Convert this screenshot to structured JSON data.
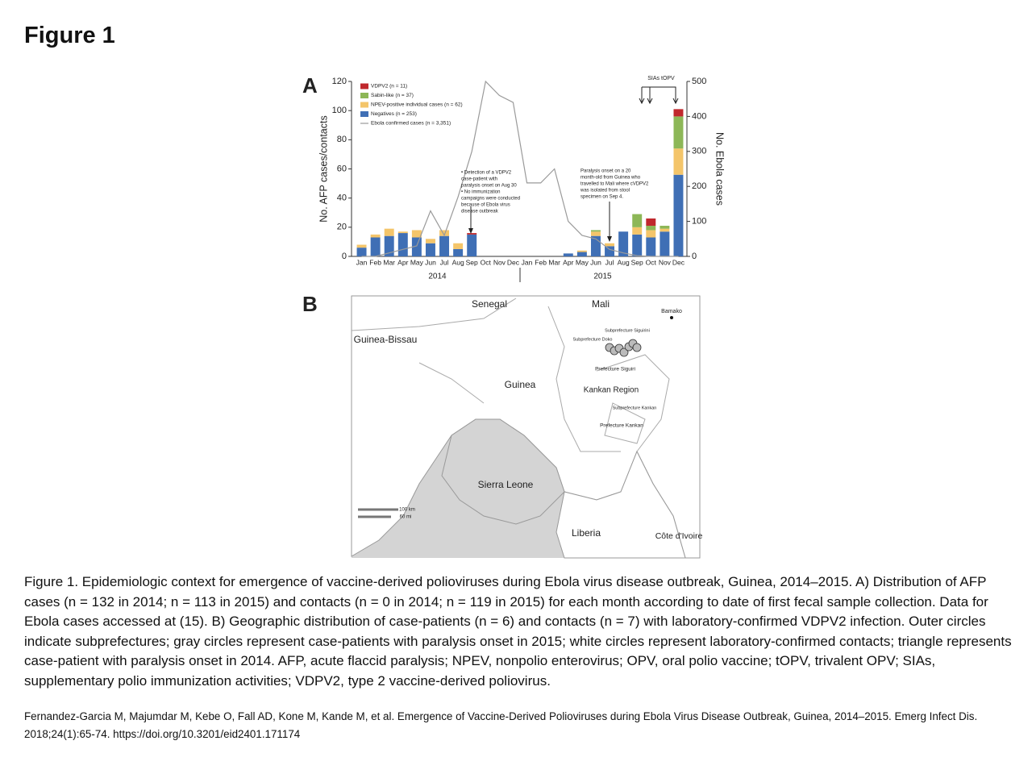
{
  "title": "Figure 1",
  "panel_a": {
    "label": "A",
    "chart": {
      "type": "bar",
      "stacked": true,
      "categories": [
        "Jan",
        "Feb",
        "Mar",
        "Apr",
        "May",
        "Jun",
        "Jul",
        "Aug",
        "Sep",
        "Oct",
        "Nov",
        "Dec",
        "Jan",
        "Feb",
        "Mar",
        "Apr",
        "May",
        "Jun",
        "Jul",
        "Aug",
        "Sep",
        "Oct",
        "Nov",
        "Dec"
      ],
      "groups": [
        "2014",
        "2015"
      ],
      "ylabel": "No. AFP cases/contacts",
      "y2label": "No. Ebola cases",
      "ylim": [
        0,
        120
      ],
      "yticks": [
        0,
        20,
        40,
        60,
        80,
        100,
        120
      ],
      "y2lim": [
        0,
        500
      ],
      "y2ticks": [
        0,
        100,
        200,
        300,
        400,
        500
      ],
      "series": [
        {
          "name": "VDPV2 (n = 11)",
          "type": "bar",
          "color": "#c0282d",
          "values": [
            0,
            0,
            0,
            0,
            0,
            0,
            0,
            0,
            1,
            0,
            0,
            0,
            0,
            0,
            0,
            0,
            0,
            0,
            0,
            0,
            0,
            5,
            0,
            5
          ]
        },
        {
          "name": "Sabin-like (n = 37)",
          "type": "bar",
          "color": "#8db757",
          "values": [
            0,
            0,
            0,
            0,
            0,
            0,
            0,
            0,
            0,
            0,
            0,
            0,
            0,
            0,
            0,
            0,
            0,
            1,
            0,
            0,
            9,
            3,
            2,
            22
          ]
        },
        {
          "name": "NPEV-positive individual cases (n = 62)",
          "type": "bar",
          "color": "#f4c56a",
          "values": [
            2,
            2,
            5,
            1,
            5,
            3,
            4,
            4,
            0,
            0,
            0,
            0,
            0,
            0,
            0,
            0,
            1,
            3,
            2,
            0,
            5,
            5,
            2,
            18
          ]
        },
        {
          "name": "Negatives (n = 253)",
          "type": "bar",
          "color": "#3f6fb5",
          "values": [
            6,
            13,
            14,
            16,
            13,
            9,
            14,
            5,
            15,
            0,
            0,
            0,
            0,
            0,
            0,
            2,
            3,
            14,
            7,
            17,
            15,
            13,
            17,
            56
          ]
        },
        {
          "name": "Ebola confirmed cases (n = 3,351)",
          "type": "line",
          "axis": "y2",
          "color": "#9a9a9a",
          "values": [
            0,
            0,
            10,
            20,
            30,
            130,
            60,
            170,
            300,
            500,
            460,
            440,
            210,
            210,
            250,
            100,
            60,
            50,
            20,
            10,
            2,
            0,
            0,
            0
          ]
        }
      ],
      "annotations": {
        "sias": "SIAs tOPV",
        "note_2014": [
          "• Detection of a VDPV2",
          "case-patient with",
          "paralysis onset on Aug 30",
          "• No immunization",
          "campaigns were conducted",
          "because of Ebola virus",
          "disease outbreak"
        ],
        "note_2015": [
          "Paralysis onset on a 20",
          "month-old from Guinea who",
          "travelled to Mali where cVDPV2",
          "was isolated from stool",
          "specimen on Sep 4."
        ]
      }
    }
  },
  "panel_b": {
    "label": "B",
    "labels": {
      "senegal": "Senegal",
      "mali": "Mali",
      "bamako": "Bamako",
      "guinea_bissau": "Guinea-Bissau",
      "guinea": "Guinea",
      "kankan_region": "Kankan Region",
      "sierra_leone": "Sierra Leone",
      "liberia": "Liberia",
      "cote_divoire": "Côte d'Ivoire",
      "sub_doko": "Subprefecture Doko",
      "sub_siguirini": "Subprefecture Siguirini",
      "pref_siguiri": "Prefecture Siguiri",
      "sub_kankan": "Subprefecture Kankan",
      "pref_kankan": "Prefecture Kankan",
      "scale_km": "100 km",
      "scale_mi": "60 mi"
    }
  },
  "caption": "Figure 1. Epidemiologic context for emergence of vaccine-derived polioviruses during Ebola virus disease outbreak, Guinea, 2014–2015. A) Distribution of AFP cases (n = 132 in 2014; n = 113 in 2015) and contacts (n = 0 in 2014; n = 119 in 2015) for each month according to date of first fecal sample collection. Data for Ebola cases accessed at (15). B) Geographic distribution of case-patients (n = 6) and contacts (n = 7) with laboratory-confirmed VDPV2 infection. Outer circles indicate subprefectures; gray circles represent case-patients with paralysis onset in 2015; white circles represent laboratory-confirmed contacts; triangle represents case-patient with paralysis onset in 2014. AFP, acute flaccid paralysis; NPEV, nonpolio enterovirus; OPV, oral polio vaccine; tOPV, trivalent OPV; SIAs, supplementary polio immunization activities; VDPV2, type 2 vaccine-derived poliovirus.",
  "citation": "Fernandez-Garcia M, Majumdar M, Kebe O, Fall AD, Kone M, Kande M, et al. Emergence of Vaccine-Derived Polioviruses during Ebola Virus Disease Outbreak, Guinea, 2014–2015. Emerg Infect Dis. 2018;24(1):65-74. https://doi.org/10.3201/eid2401.171174"
}
